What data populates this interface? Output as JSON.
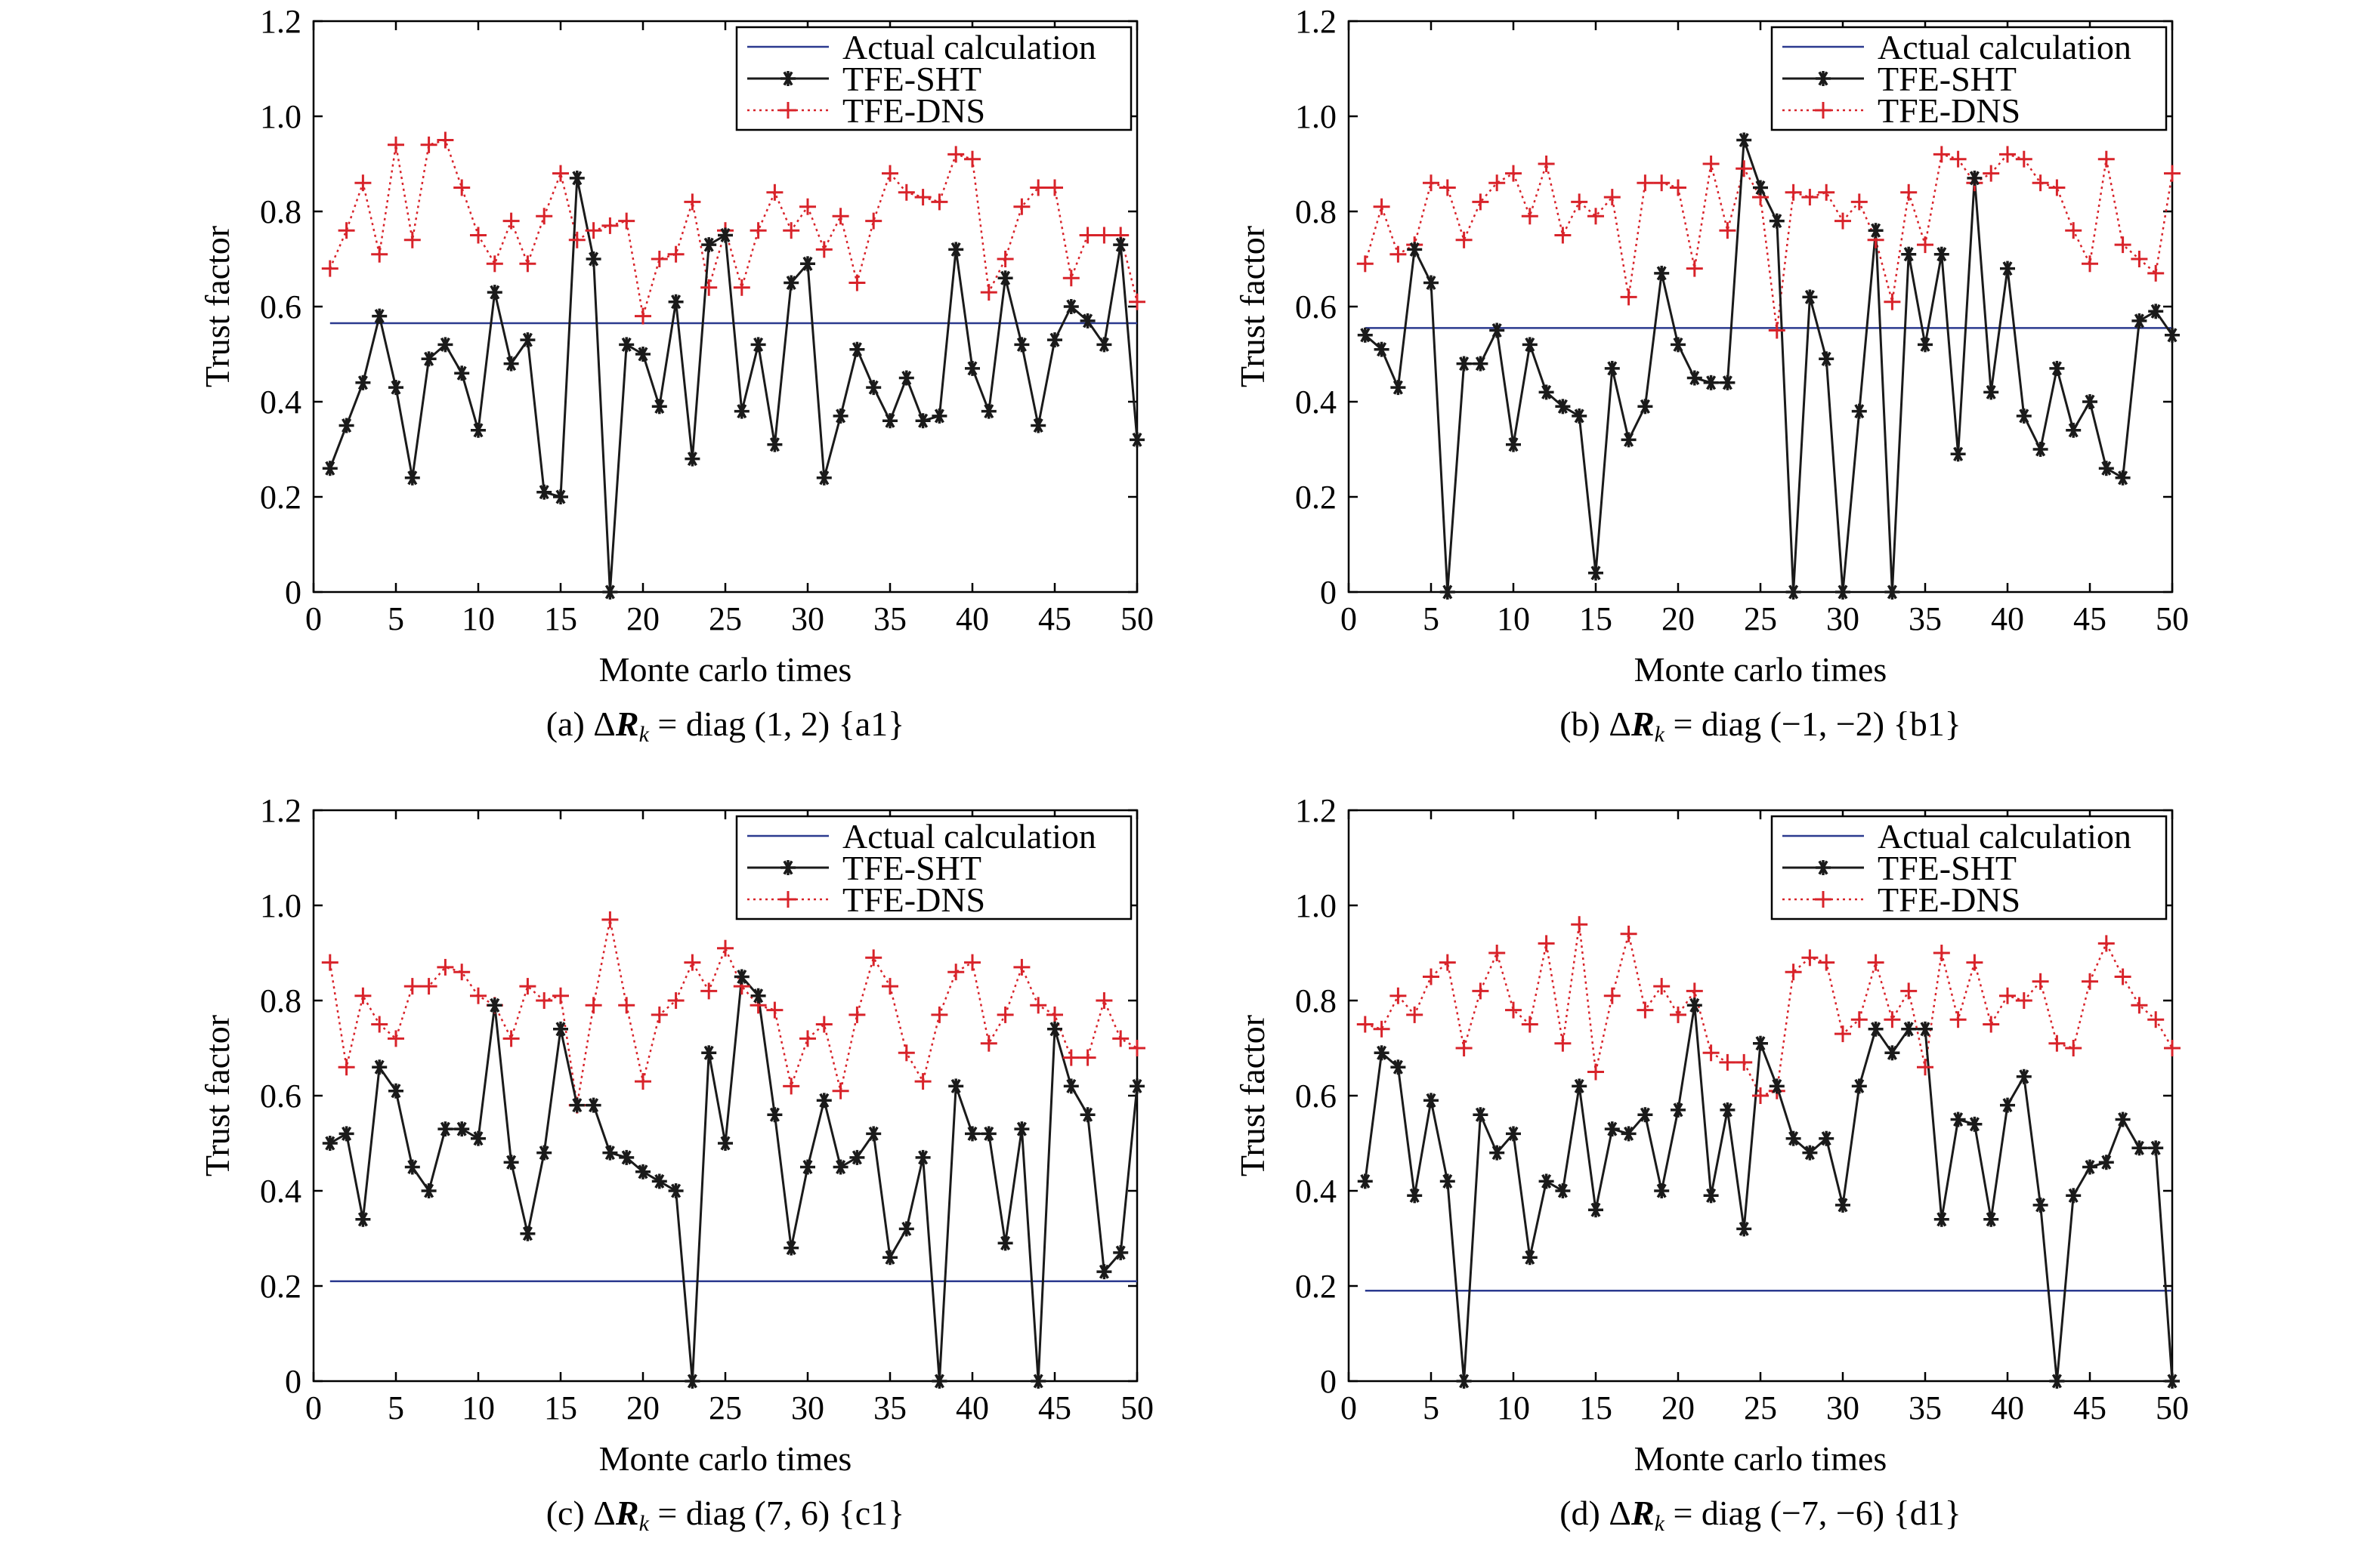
{
  "figure": {
    "colors": {
      "actual": "#2b3a8f",
      "sht": "#1a1a1a",
      "dns": "#d8232a"
    },
    "legend": [
      "Actual calculation",
      "TFE-SHT",
      "TFE-DNS"
    ]
  },
  "chart_data": [
    {
      "type": "line",
      "caption_prefix": "(a) ΔR",
      "caption_sub": "k",
      "caption_suffix": " = diag (1, 2) {a1}",
      "xlabel": "Monte carlo times",
      "ylabel": "Trust factor",
      "xlim": [
        0,
        50
      ],
      "ylim": [
        0,
        1.2
      ],
      "x_ticks": [
        0,
        5,
        10,
        15,
        20,
        25,
        30,
        35,
        40,
        45,
        50
      ],
      "y_ticks": [
        "0",
        "0.2",
        "0.4",
        "0.6",
        "0.8",
        "1.0",
        "1.2"
      ],
      "grid": false,
      "legend_position": "top-right",
      "actual": 0.565,
      "series": [
        {
          "name": "TFE-SHT",
          "values": [
            0.26,
            0.35,
            0.44,
            0.58,
            0.43,
            0.24,
            0.49,
            0.52,
            0.46,
            0.34,
            0.63,
            0.48,
            0.53,
            0.21,
            0.2,
            0.87,
            0.7,
            0.0,
            0.52,
            0.5,
            0.39,
            0.61,
            0.28,
            0.73,
            0.75,
            0.38,
            0.52,
            0.31,
            0.65,
            0.69,
            0.24,
            0.37,
            0.51,
            0.43,
            0.36,
            0.45,
            0.36,
            0.37,
            0.72,
            0.47,
            0.38,
            0.66,
            0.52,
            0.35,
            0.53,
            0.6,
            0.57,
            0.52,
            0.73,
            0.32
          ]
        },
        {
          "name": "TFE-DNS",
          "values": [
            0.68,
            0.76,
            0.86,
            0.71,
            0.94,
            0.74,
            0.94,
            0.95,
            0.85,
            0.75,
            0.69,
            0.78,
            0.69,
            0.79,
            0.88,
            0.74,
            0.76,
            0.77,
            0.78,
            0.58,
            0.7,
            0.71,
            0.82,
            0.64,
            0.76,
            0.64,
            0.76,
            0.84,
            0.76,
            0.81,
            0.72,
            0.79,
            0.65,
            0.78,
            0.88,
            0.84,
            0.83,
            0.82,
            0.92,
            0.91,
            0.63,
            0.7,
            0.81,
            0.85,
            0.85,
            0.66,
            0.75,
            0.75,
            0.75,
            0.61
          ]
        }
      ]
    },
    {
      "type": "line",
      "caption_prefix": "(b) ΔR",
      "caption_sub": "k",
      "caption_suffix": " = diag (−1, −2) {b1}",
      "xlabel": "Monte carlo times",
      "ylabel": "Trust factor",
      "xlim": [
        0,
        50
      ],
      "ylim": [
        0,
        1.2
      ],
      "x_ticks": [
        0,
        5,
        10,
        15,
        20,
        25,
        30,
        35,
        40,
        45,
        50
      ],
      "y_ticks": [
        "0",
        "0.2",
        "0.4",
        "0.6",
        "0.8",
        "1.0",
        "1.2"
      ],
      "grid": false,
      "legend_position": "top-right",
      "actual": 0.555,
      "series": [
        {
          "name": "TFE-SHT",
          "values": [
            0.54,
            0.51,
            0.43,
            0.72,
            0.65,
            0.0,
            0.48,
            0.48,
            0.55,
            0.31,
            0.52,
            0.42,
            0.39,
            0.37,
            0.04,
            0.47,
            0.32,
            0.39,
            0.67,
            0.52,
            0.45,
            0.44,
            0.44,
            0.95,
            0.85,
            0.78,
            0.0,
            0.62,
            0.49,
            0.0,
            0.38,
            0.76,
            0.0,
            0.71,
            0.52,
            0.71,
            0.29,
            0.87,
            0.42,
            0.68,
            0.37,
            0.3,
            0.47,
            0.34,
            0.4,
            0.26,
            0.24,
            0.57,
            0.59,
            0.54
          ]
        },
        {
          "name": "TFE-DNS",
          "values": [
            0.69,
            0.81,
            0.71,
            0.73,
            0.86,
            0.85,
            0.74,
            0.82,
            0.86,
            0.88,
            0.79,
            0.9,
            0.75,
            0.82,
            0.79,
            0.83,
            0.62,
            0.86,
            0.86,
            0.85,
            0.68,
            0.9,
            0.76,
            0.89,
            0.83,
            0.55,
            0.84,
            0.83,
            0.84,
            0.78,
            0.82,
            0.74,
            0.61,
            0.84,
            0.73,
            0.92,
            0.91,
            0.86,
            0.88,
            0.92,
            0.91,
            0.86,
            0.85,
            0.76,
            0.69,
            0.91,
            0.73,
            0.7,
            0.67,
            0.88
          ]
        }
      ]
    },
    {
      "type": "line",
      "caption_prefix": "(c) ΔR",
      "caption_sub": "k",
      "caption_suffix": " = diag (7, 6) {c1}",
      "xlabel": "Monte carlo times",
      "ylabel": "Trust factor",
      "xlim": [
        0,
        50
      ],
      "ylim": [
        0,
        1.2
      ],
      "x_ticks": [
        0,
        5,
        10,
        15,
        20,
        25,
        30,
        35,
        40,
        45,
        50
      ],
      "y_ticks": [
        "0",
        "0.2",
        "0.4",
        "0.6",
        "0.8",
        "1.0",
        "1.2"
      ],
      "grid": false,
      "legend_position": "top-right",
      "actual": 0.21,
      "series": [
        {
          "name": "TFE-SHT",
          "values": [
            0.5,
            0.52,
            0.34,
            0.66,
            0.61,
            0.45,
            0.4,
            0.53,
            0.53,
            0.51,
            0.79,
            0.46,
            0.31,
            0.48,
            0.74,
            0.58,
            0.58,
            0.48,
            0.47,
            0.44,
            0.42,
            0.4,
            0.0,
            0.69,
            0.5,
            0.85,
            0.81,
            0.56,
            0.28,
            0.45,
            0.59,
            0.45,
            0.47,
            0.52,
            0.26,
            0.32,
            0.47,
            0.0,
            0.62,
            0.52,
            0.52,
            0.29,
            0.53,
            0.0,
            0.74,
            0.62,
            0.56,
            0.23,
            0.27,
            0.62
          ]
        },
        {
          "name": "TFE-DNS",
          "values": [
            0.88,
            0.66,
            0.81,
            0.75,
            0.72,
            0.83,
            0.83,
            0.87,
            0.86,
            0.81,
            0.79,
            0.72,
            0.83,
            0.8,
            0.81,
            0.58,
            0.79,
            0.97,
            0.79,
            0.63,
            0.77,
            0.8,
            0.88,
            0.82,
            0.91,
            0.83,
            0.79,
            0.78,
            0.62,
            0.72,
            0.75,
            0.61,
            0.77,
            0.89,
            0.83,
            0.69,
            0.63,
            0.77,
            0.86,
            0.88,
            0.71,
            0.77,
            0.87,
            0.79,
            0.77,
            0.68,
            0.68,
            0.8,
            0.72,
            0.7
          ]
        }
      ]
    },
    {
      "type": "line",
      "caption_prefix": "(d) ΔR",
      "caption_sub": "k",
      "caption_suffix": " = diag (−7, −6) {d1}",
      "xlabel": "Monte carlo times",
      "ylabel": "Trust factor",
      "xlim": [
        0,
        50
      ],
      "ylim": [
        0,
        1.2
      ],
      "x_ticks": [
        0,
        5,
        10,
        15,
        20,
        25,
        30,
        35,
        40,
        45,
        50
      ],
      "y_ticks": [
        "0",
        "0.2",
        "0.4",
        "0.6",
        "0.8",
        "1.0",
        "1.2"
      ],
      "grid": false,
      "legend_position": "top-right",
      "actual": 0.19,
      "series": [
        {
          "name": "TFE-SHT",
          "values": [
            0.42,
            0.69,
            0.66,
            0.39,
            0.59,
            0.42,
            0.0,
            0.56,
            0.48,
            0.52,
            0.26,
            0.42,
            0.4,
            0.62,
            0.36,
            0.53,
            0.52,
            0.56,
            0.4,
            0.57,
            0.79,
            0.39,
            0.57,
            0.32,
            0.71,
            0.62,
            0.51,
            0.48,
            0.51,
            0.37,
            0.62,
            0.74,
            0.69,
            0.74,
            0.74,
            0.34,
            0.55,
            0.54,
            0.34,
            0.58,
            0.64,
            0.37,
            0.0,
            0.39,
            0.45,
            0.46,
            0.55,
            0.49,
            0.49,
            0.0
          ]
        },
        {
          "name": "TFE-DNS",
          "values": [
            0.75,
            0.74,
            0.81,
            0.77,
            0.85,
            0.88,
            0.7,
            0.82,
            0.9,
            0.78,
            0.75,
            0.92,
            0.71,
            0.96,
            0.65,
            0.81,
            0.94,
            0.78,
            0.83,
            0.77,
            0.82,
            0.69,
            0.67,
            0.67,
            0.6,
            0.61,
            0.86,
            0.89,
            0.88,
            0.73,
            0.76,
            0.88,
            0.76,
            0.82,
            0.66,
            0.9,
            0.76,
            0.88,
            0.75,
            0.81,
            0.8,
            0.84,
            0.71,
            0.7,
            0.84,
            0.92,
            0.85,
            0.79,
            0.76,
            0.7
          ]
        }
      ]
    }
  ]
}
